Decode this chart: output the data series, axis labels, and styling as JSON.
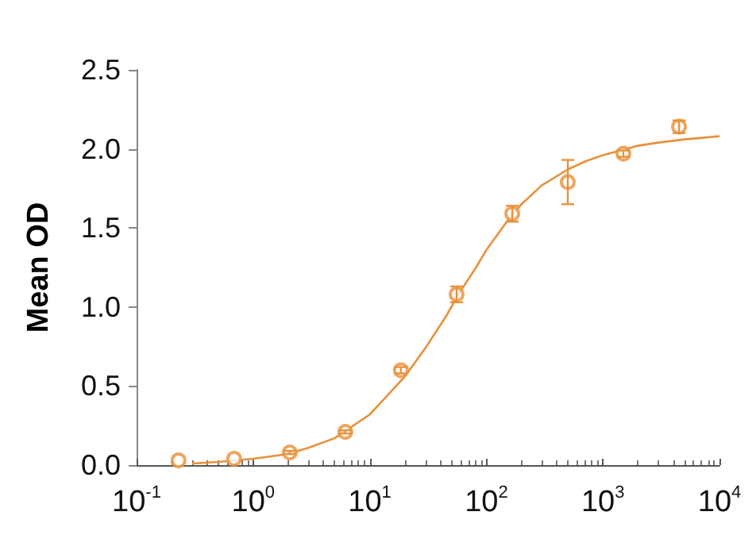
{
  "chart_data": {
    "type": "scatter",
    "ylabel": "Mean OD",
    "log": "x",
    "marker": "circle",
    "grid": false,
    "xlim": [
      0.1,
      10000
    ],
    "xticks": [
      {
        "value": 0.1,
        "label": "10$^{-1}$"
      },
      {
        "value": 1,
        "label": "10$^{0}$"
      },
      {
        "value": 10,
        "label": "10$^{1}$"
      },
      {
        "value": 100,
        "label": "10$^{2}$"
      },
      {
        "value": 1000,
        "label": "10$^{3}$"
      },
      {
        "value": 10000,
        "label": "10$^{4}$"
      }
    ],
    "ylim": [
      0,
      2.5
    ],
    "yticks": [
      {
        "value": 0,
        "label": "0.0"
      },
      {
        "value": 0.5,
        "label": "0.5"
      },
      {
        "value": 1,
        "label": "1.0"
      },
      {
        "value": 1.5,
        "label": "1.5"
      },
      {
        "value": 2,
        "label": "2.0"
      },
      {
        "value": 2.5,
        "label": "2.5"
      }
    ],
    "series": [
      {
        "color": "#e8913a",
        "x": [
          0.229,
          0.686,
          2.06,
          6.17,
          18.5,
          55.6,
          167,
          500,
          1500,
          4500
        ],
        "values": [
          0.03,
          0.04,
          0.08,
          0.21,
          0.6,
          1.08,
          1.59,
          1.79,
          1.97,
          2.14
        ],
        "errors": [
          null,
          null,
          0.01,
          0.01,
          0.02,
          0.05,
          0.05,
          0.14,
          0.02,
          0.04
        ]
      },
      {
        "type": "line",
        "marker": "none",
        "color": "#e8913a",
        "x": [
          0.3,
          0.5,
          1,
          2,
          3,
          5,
          10,
          20,
          30,
          45,
          60,
          80,
          100,
          150,
          200,
          300,
          500,
          700,
          1000,
          2000,
          3000,
          5000,
          10000
        ],
        "values": [
          0.01,
          0.02,
          0.04,
          0.07,
          0.11,
          0.17,
          0.32,
          0.56,
          0.74,
          0.94,
          1.1,
          1.24,
          1.36,
          1.54,
          1.65,
          1.77,
          1.87,
          1.92,
          1.96,
          2.02,
          2.04,
          2.06,
          2.08
        ]
      }
    ]
  }
}
